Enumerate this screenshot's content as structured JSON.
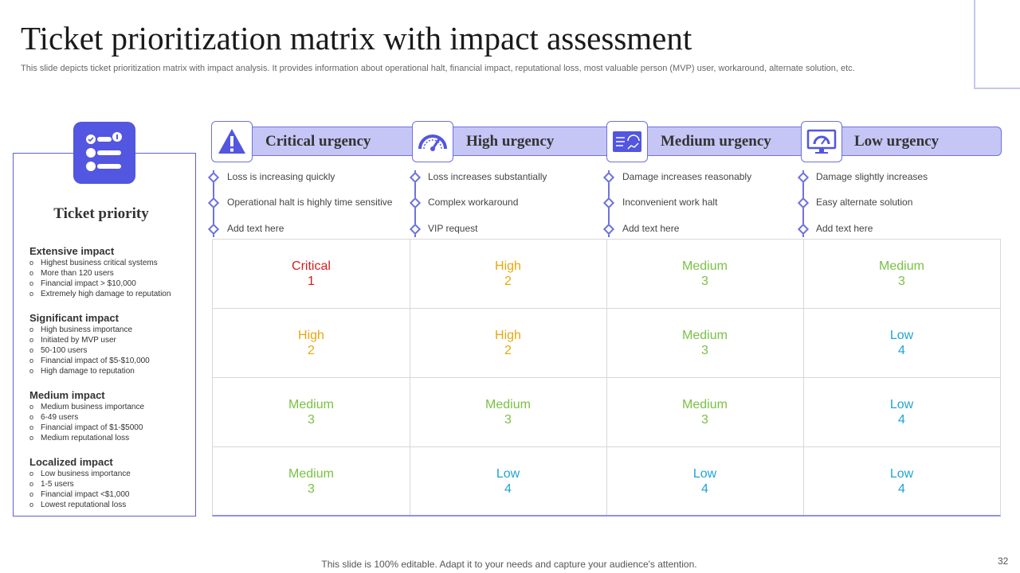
{
  "title": "Ticket prioritization matrix with impact assessment",
  "subtitle": "This slide depicts ticket prioritization matrix with impact analysis. It provides information about operational halt, financial impact, reputational loss, most valuable person (MVP) user, workaround, alternate solution, etc.",
  "left_panel": {
    "title": "Ticket priority",
    "impacts": [
      {
        "title": "Extensive impact",
        "items": [
          "Highest business critical systems",
          "More than 120 users",
          "Financial impact > $10,000",
          "Extremely high damage to reputation"
        ]
      },
      {
        "title": "Significant impact",
        "items": [
          "High business importance",
          "Initiated by MVP user",
          "50-100 users",
          "Financial impact of $5-$10,000",
          "High damage to reputation"
        ]
      },
      {
        "title": "Medium impact",
        "items": [
          "Medium business importance",
          "6-49 users",
          "Financial impact of $1-$5000",
          "Medium reputational loss"
        ]
      },
      {
        "title": "Localized impact",
        "items": [
          "Low business importance",
          "1-5 users",
          "Financial impact <$1,000",
          "Lowest reputational loss"
        ]
      }
    ]
  },
  "columns": [
    {
      "label": "Critical urgency",
      "icon": "warning-icon",
      "items": [
        "Loss is increasing quickly",
        "Operational halt is highly time sensitive",
        "Add text here"
      ]
    },
    {
      "label": "High urgency",
      "icon": "speedometer-icon",
      "items": [
        "Loss increases substantially",
        "Complex workaround",
        "VIP request"
      ]
    },
    {
      "label": "Medium urgency",
      "icon": "dashboard-icon",
      "items": [
        "Damage increases reasonably",
        "Inconvenient work halt",
        "Add text here"
      ]
    },
    {
      "label": "Low urgency",
      "icon": "monitor-gauge-icon",
      "items": [
        "Damage slightly increases",
        "Easy alternate solution",
        "Add text here"
      ]
    }
  ],
  "matrix": [
    [
      {
        "label": "Critical",
        "value": "1"
      },
      {
        "label": "High",
        "value": "2"
      },
      {
        "label": "Medium",
        "value": "3"
      },
      {
        "label": "Medium",
        "value": "3"
      }
    ],
    [
      {
        "label": "High",
        "value": "2"
      },
      {
        "label": "High",
        "value": "2"
      },
      {
        "label": "Medium",
        "value": "3"
      },
      {
        "label": "Low",
        "value": "4"
      }
    ],
    [
      {
        "label": "Medium",
        "value": "3"
      },
      {
        "label": "Medium",
        "value": "3"
      },
      {
        "label": "Medium",
        "value": "3"
      },
      {
        "label": "Low",
        "value": "4"
      }
    ],
    [
      {
        "label": "Medium",
        "value": "3"
      },
      {
        "label": "Low",
        "value": "4"
      },
      {
        "label": "Low",
        "value": "4"
      },
      {
        "label": "Low",
        "value": "4"
      }
    ]
  ],
  "level_colors": {
    "Critical": "#d11f1f",
    "High": "#e8a80c",
    "Medium": "#7ac142",
    "Low": "#1fa3d6"
  },
  "accent_color": "#5256e0",
  "footer": "This slide is 100% editable. Adapt it to your needs and capture your audience's attention.",
  "page_number": "32"
}
